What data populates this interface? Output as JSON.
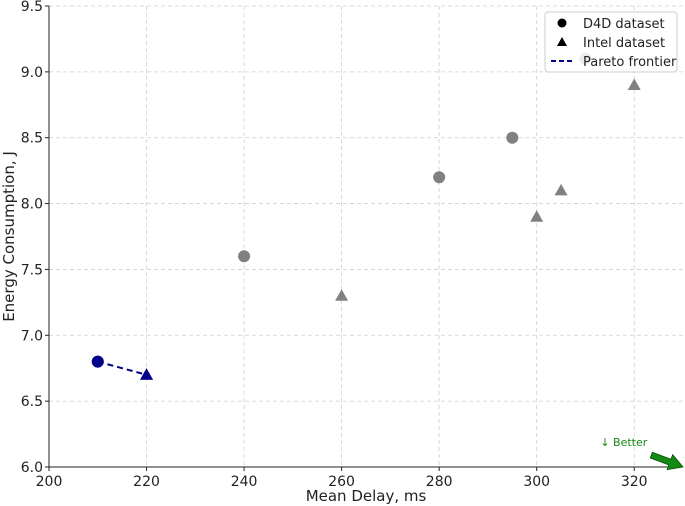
{
  "chart_data": {
    "type": "scatter",
    "xlabel": "Mean Delay, ms",
    "ylabel": "Energy Consumption, J",
    "xlim": [
      200,
      330
    ],
    "ylim": [
      6.0,
      9.5
    ],
    "xticks": [
      200,
      220,
      240,
      260,
      280,
      300,
      320
    ],
    "yticks": [
      6.0,
      6.5,
      7.0,
      7.5,
      8.0,
      8.5,
      9.0,
      9.5
    ],
    "xtick_labels": [
      "200",
      "220",
      "240",
      "260",
      "280",
      "300",
      "320"
    ],
    "ytick_labels": [
      "6.0",
      "6.5",
      "7.0",
      "7.5",
      "8.0",
      "8.5",
      "9.0",
      "9.5"
    ],
    "grid": true,
    "legend_position": "top-right",
    "series": [
      {
        "name": "D4D dataset",
        "marker": "circle",
        "color": "#808080",
        "points": [
          {
            "x": 210,
            "y": 6.8
          },
          {
            "x": 240,
            "y": 7.6
          },
          {
            "x": 280,
            "y": 8.2
          },
          {
            "x": 295,
            "y": 8.5
          },
          {
            "x": 310,
            "y": 9.1
          }
        ]
      },
      {
        "name": "Intel dataset",
        "marker": "triangle",
        "color": "#808080",
        "points": [
          {
            "x": 220,
            "y": 6.7
          },
          {
            "x": 260,
            "y": 7.3
          },
          {
            "x": 300,
            "y": 7.9
          },
          {
            "x": 305,
            "y": 8.1
          },
          {
            "x": 320,
            "y": 8.9
          }
        ]
      },
      {
        "name": "Pareto frontier",
        "line_style": "dashed",
        "color": "#00008b",
        "points": [
          {
            "x": 210,
            "y": 6.8
          },
          {
            "x": 220,
            "y": 6.7
          }
        ]
      }
    ],
    "legend": [
      {
        "label": "D4D dataset",
        "marker": "circle"
      },
      {
        "label": "Intel dataset",
        "marker": "triangle"
      },
      {
        "label": "Pareto frontier",
        "marker": "dashed-line"
      }
    ],
    "annotation": {
      "text": "↓ Better",
      "color": "#138a13",
      "arrow_from": {
        "x": 323.5,
        "y": 6.09
      },
      "arrow_to": {
        "x": 330,
        "y": 6.0
      }
    }
  }
}
